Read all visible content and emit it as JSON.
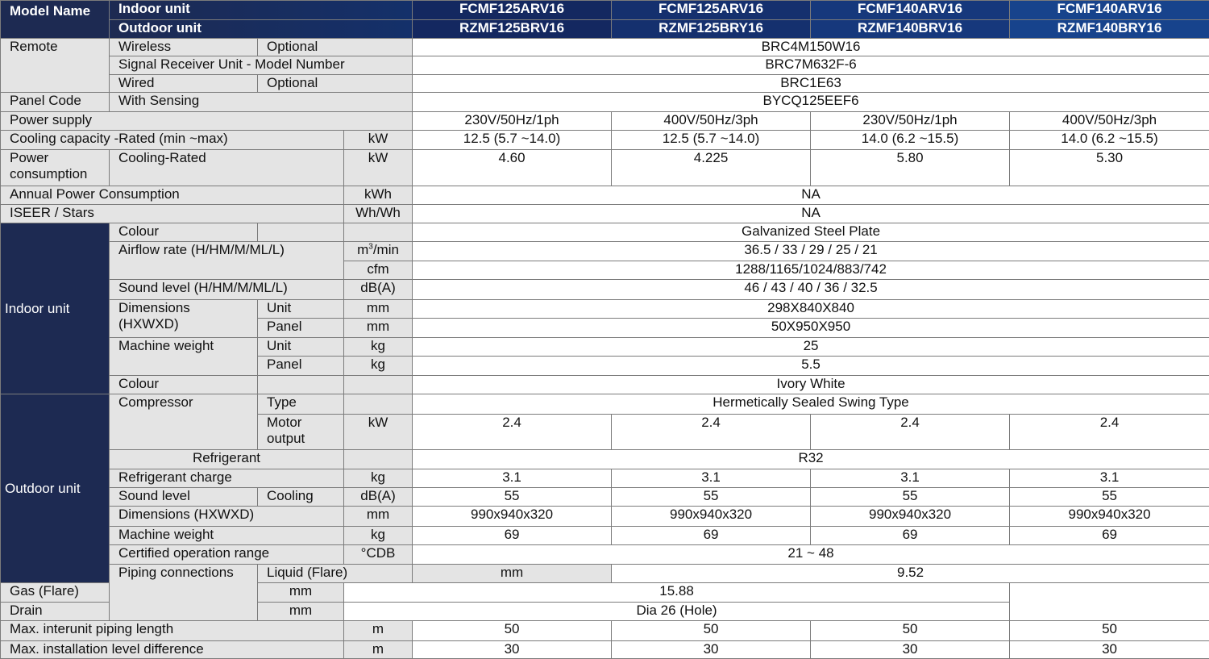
{
  "header": {
    "model_name": "Model Name",
    "indoor_unit": "Indoor unit",
    "outdoor_unit": "Outdoor unit",
    "indoor_models": [
      "FCMF125ARV16",
      "FCMF125ARV16",
      "FCMF140ARV16",
      "FCMF140ARV16"
    ],
    "outdoor_models": [
      "RZMF125BRV16",
      "RZMF125BRY16",
      "RZMF140BRV16",
      "RZMF140BRY16"
    ]
  },
  "remote": {
    "label": "Remote",
    "wireless": "Wireless",
    "optional": "Optional",
    "wireless_value": "BRC4M150W16",
    "signal_receiver": "Signal Receiver Unit - Model Number",
    "signal_receiver_value": "BRC7M632F-6",
    "wired": "Wired",
    "wired_value": "BRC1E63"
  },
  "panel": {
    "label": "Panel Code",
    "sensing": "With Sensing",
    "value": "BYCQ125EEF6"
  },
  "power_supply": {
    "label": "Power supply",
    "values": [
      "230V/50Hz/1ph",
      "400V/50Hz/3ph",
      "230V/50Hz/1ph",
      "400V/50Hz/3ph"
    ]
  },
  "cooling_capacity": {
    "label": "Cooling capacity -Rated (min ~max)",
    "unit": "kW",
    "values": [
      "12.5 (5.7  ~14.0)",
      "12.5 (5.7  ~14.0)",
      "14.0 (6.2  ~15.5)",
      "14.0 (6.2  ~15.5)"
    ]
  },
  "power_consumption": {
    "label": "Power consumption",
    "sub": "Cooling-Rated",
    "unit": "kW",
    "values": [
      "4.60",
      "4.225",
      "5.80",
      "5.30"
    ]
  },
  "annual_power": {
    "label": "Annual Power Consumption",
    "unit": "kWh",
    "value": "NA"
  },
  "iseer": {
    "label": "ISEER / Stars",
    "unit": "Wh/Wh",
    "value": "NA"
  },
  "indoor": {
    "label": "Indoor unit",
    "colour": "Colour",
    "colour_value": "Galvanized Steel Plate",
    "airflow": "Airflow rate (H/HM/M/ML/L)",
    "airflow_unit_1": "m",
    "airflow_unit_1_sup": "3",
    "airflow_unit_1_suffix": "/min",
    "airflow_value_1": "36.5 / 33 / 29 / 25 / 21",
    "airflow_unit_2": "cfm",
    "airflow_value_2": "1288/1165/1024/883/742",
    "sound": "Sound level (H/HM/M/ML/L)",
    "sound_unit": "dB(A)",
    "sound_value": "46 / 43 / 40 / 36 / 32.5",
    "dimensions": "Dimensions (HXWXD)",
    "unit_label": "Unit",
    "panel_label": "Panel",
    "dim_unit": "mm",
    "dim_unit_value": "298X840X840",
    "dim_panel_value": "50X950X950",
    "weight": "Machine weight",
    "weight_unit": "kg",
    "weight_unit_value": "25",
    "weight_panel_value": "5.5",
    "colour2": "Colour",
    "colour2_value": "Ivory White"
  },
  "outdoor": {
    "label": "Outdoor unit",
    "compressor": "Compressor",
    "type": "Type",
    "type_value": "Hermetically Sealed Swing Type",
    "motor": "Motor output",
    "motor_unit": "kW",
    "motor_values": [
      "2.4",
      "2.4",
      "2.4",
      "2.4"
    ],
    "refrigerant": "Refrigerant",
    "refrigerant_value": "R32",
    "charge": "Refrigerant charge",
    "charge_unit": "kg",
    "charge_values": [
      "3.1",
      "3.1",
      "3.1",
      "3.1"
    ],
    "sound": "Sound level",
    "cooling": "Cooling",
    "sound_unit": "dB(A)",
    "sound_values": [
      "55",
      "55",
      "55",
      "55"
    ],
    "dimensions": "Dimensions (HXWXD)",
    "dim_unit": "mm",
    "dim_values": [
      "990x940x320",
      "990x940x320",
      "990x940x320",
      "990x940x320"
    ],
    "weight": "Machine weight",
    "weight_unit": "kg",
    "weight_values": [
      "69",
      "69",
      "69",
      "69"
    ],
    "range": "Certified operation range",
    "range_unit": "°CDB",
    "range_value": "21  ~  48"
  },
  "piping": {
    "label": "Piping connections",
    "liquid": "Liquid (Flare)",
    "gas": "Gas (Flare)",
    "drain": "Drain",
    "unit": "mm",
    "liquid_value": "9.52",
    "gas_value": "15.88",
    "drain_value": "Dia 26 (Hole)"
  },
  "interunit": {
    "label": "Max. interunit piping length",
    "unit": "m",
    "values": [
      "50",
      "50",
      "50",
      "50"
    ]
  },
  "level_diff": {
    "label": "Max. installation level difference",
    "unit": "m",
    "values": [
      "30",
      "30",
      "30",
      "30"
    ]
  }
}
